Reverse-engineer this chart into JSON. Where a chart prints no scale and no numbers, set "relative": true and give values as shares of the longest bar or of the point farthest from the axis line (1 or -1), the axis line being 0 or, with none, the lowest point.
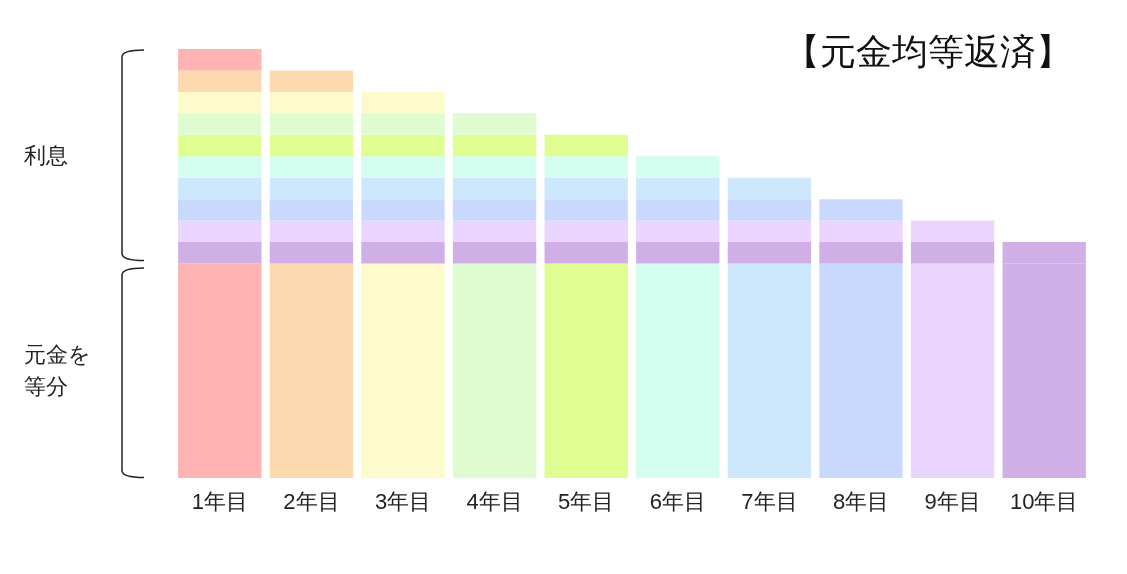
{
  "chart_data": {
    "type": "bar",
    "title": "【元金均等返済】",
    "relative": true,
    "stacked": true,
    "categories": [
      "1年目",
      "2年目",
      "3年目",
      "4年目",
      "5年目",
      "6年目",
      "7年目",
      "8年目",
      "9年目",
      "10年目"
    ],
    "series": [
      {
        "colors": [
          "#ffb3b3",
          "#fdd9b0",
          "#fdfbcb",
          "#dffbd0",
          "#dffd90",
          "#d3fdee",
          "#cde8fd",
          "#c9d9fd",
          "#e9d5fd",
          "#d0aee6"
        ],
        "values": [
          0.5,
          0.5,
          0.5,
          0.5,
          0.5,
          0.5,
          0.5,
          0.5,
          0.5,
          0.5
        ]
      },
      {
        "color": "#d0aee6",
        "values": [
          0.05,
          0.05,
          0.05,
          0.05,
          0.05,
          0.05,
          0.05,
          0.05,
          0.05,
          0.05
        ]
      },
      {
        "color": "#e9d5fd",
        "values": [
          0.05,
          0.05,
          0.05,
          0.05,
          0.05,
          0.05,
          0.05,
          0.05,
          0.05,
          null
        ]
      },
      {
        "color": "#c9d9fd",
        "values": [
          0.05,
          0.05,
          0.05,
          0.05,
          0.05,
          0.05,
          0.05,
          0.05,
          null,
          null
        ]
      },
      {
        "color": "#cde8fd",
        "values": [
          0.05,
          0.05,
          0.05,
          0.05,
          0.05,
          0.05,
          0.05,
          null,
          null,
          null
        ]
      },
      {
        "color": "#d3fdee",
        "values": [
          0.05,
          0.05,
          0.05,
          0.05,
          0.05,
          0.05,
          null,
          null,
          null,
          null
        ]
      },
      {
        "color": "#dffd90",
        "values": [
          0.05,
          0.05,
          0.05,
          0.05,
          0.05,
          null,
          null,
          null,
          null,
          null
        ]
      },
      {
        "color": "#dffbd0",
        "values": [
          0.05,
          0.05,
          0.05,
          0.05,
          null,
          null,
          null,
          null,
          null,
          null
        ]
      },
      {
        "color": "#fdfbcb",
        "values": [
          0.05,
          0.05,
          0.05,
          null,
          null,
          null,
          null,
          null,
          null,
          null
        ]
      },
      {
        "color": "#fdd9b0",
        "values": [
          0.05,
          0.05,
          null,
          null,
          null,
          null,
          null,
          null,
          null,
          null
        ]
      },
      {
        "color": "#ffb3b3",
        "values": [
          0.05,
          null,
          null,
          null,
          null,
          null,
          null,
          null,
          null,
          null
        ]
      }
    ],
    "annotations": [
      "利息",
      "元金を等分"
    ]
  }
}
